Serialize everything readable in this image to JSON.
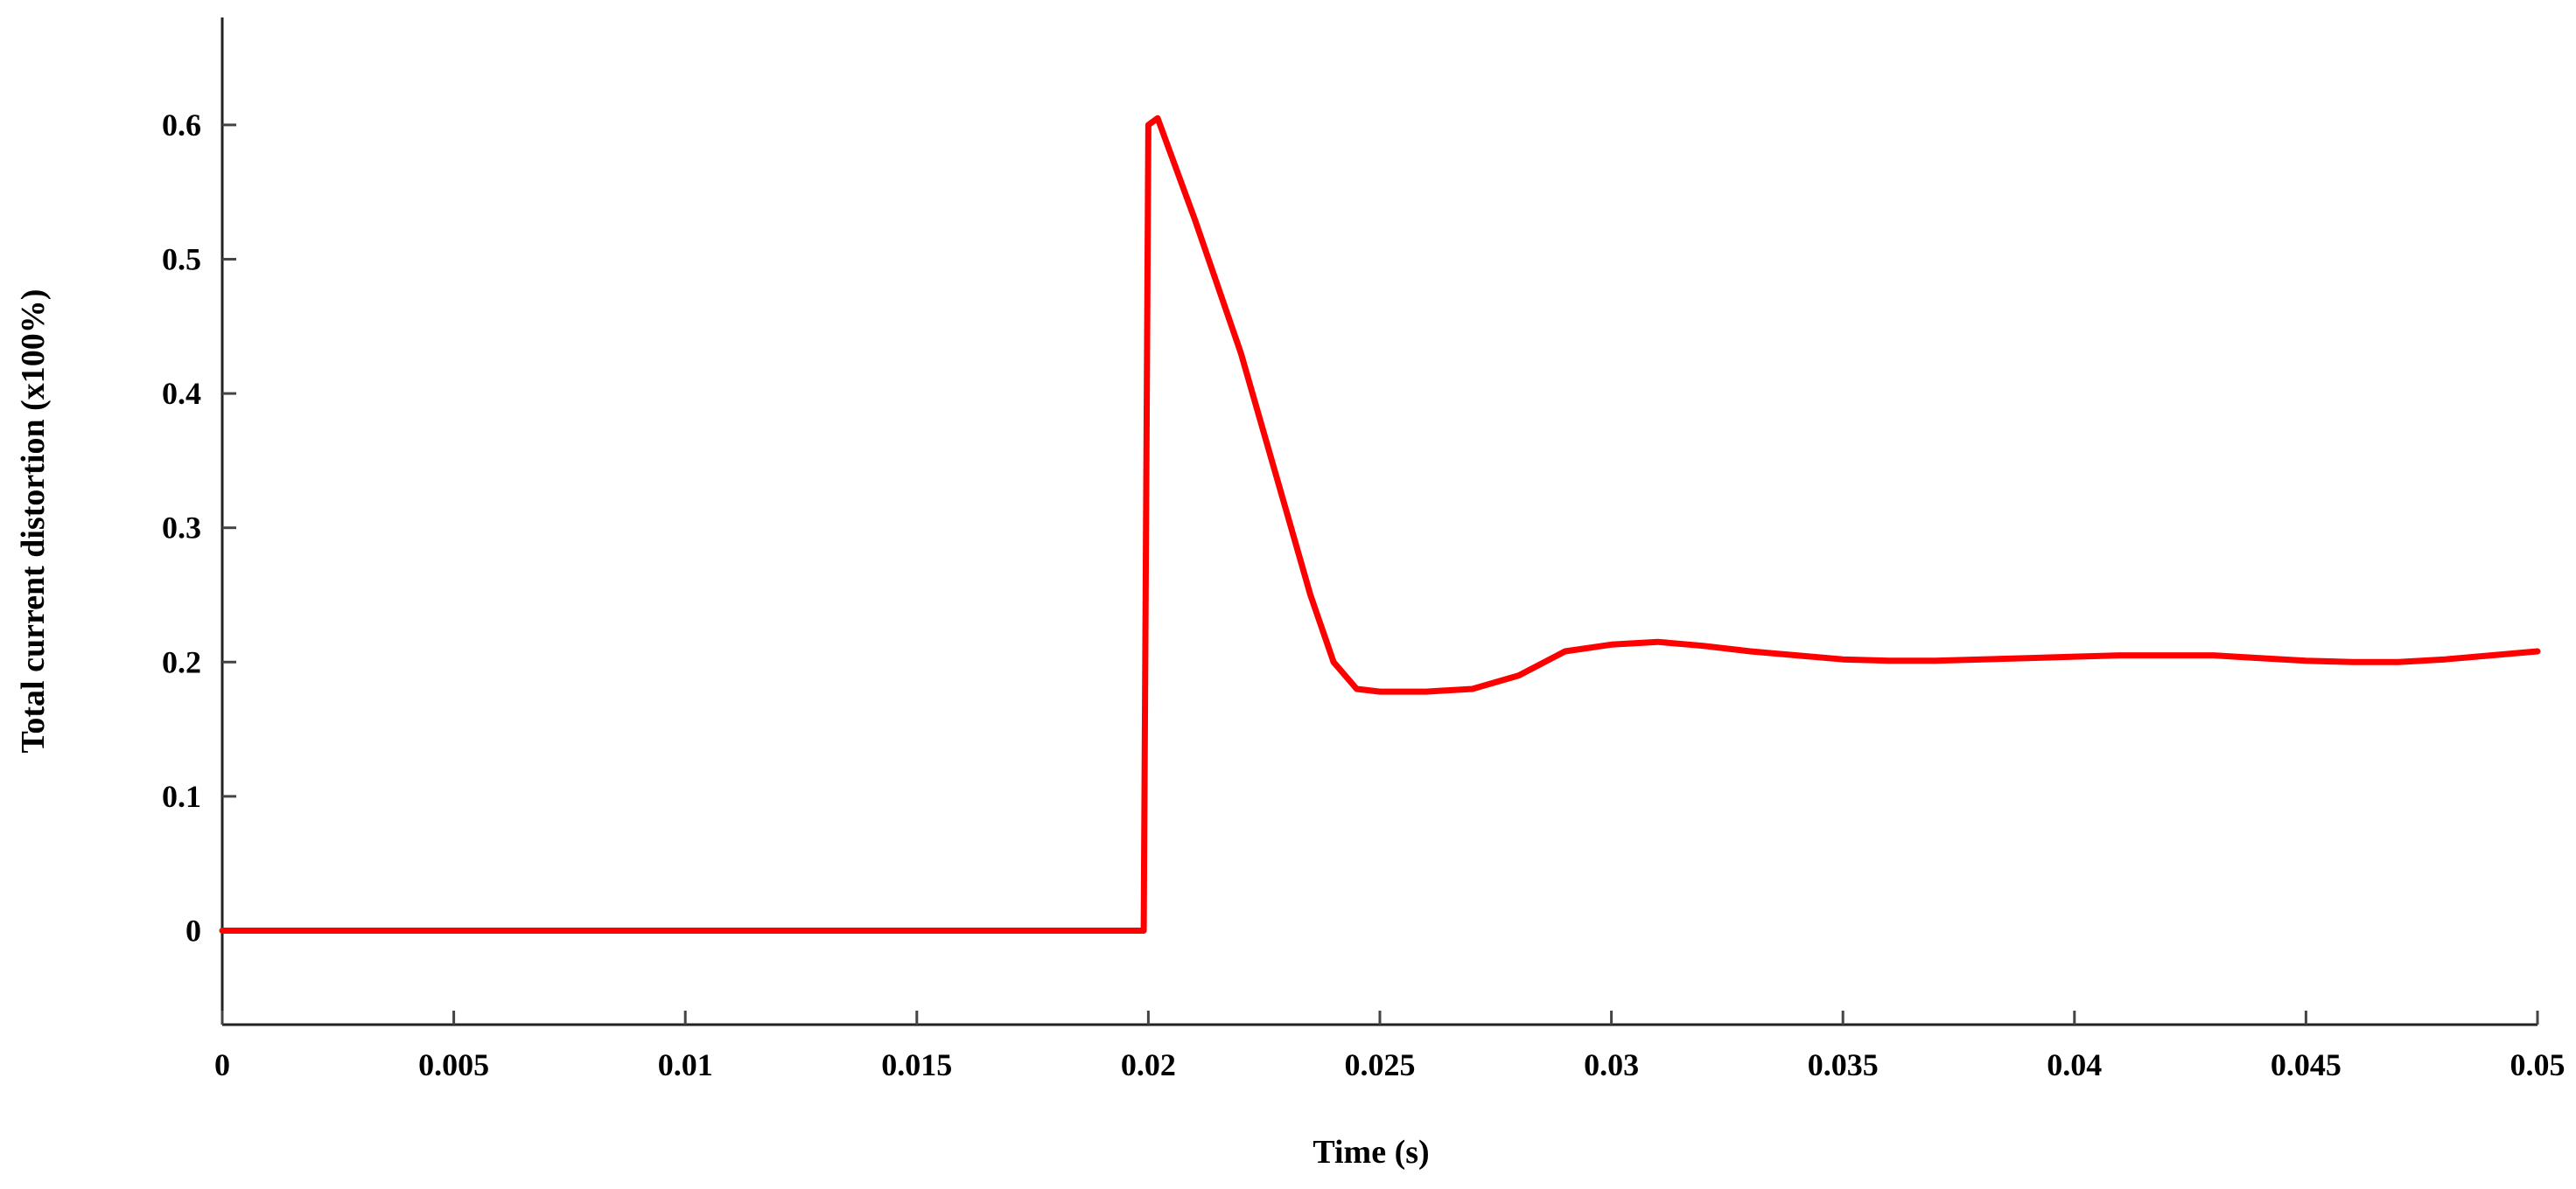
{
  "chart_data": {
    "type": "line",
    "title": "",
    "xlabel": "Time (s)",
    "ylabel": "Total current distortion  (x100%)",
    "xlim": [
      0,
      0.05
    ],
    "ylim": [
      -0.07,
      0.68
    ],
    "x_ticks": [
      0,
      0.005,
      0.01,
      0.015,
      0.02,
      0.025,
      0.03,
      0.035,
      0.04,
      0.045,
      0.05
    ],
    "x_tick_labels": [
      "0",
      "0.005",
      "0.01",
      "0.015",
      "0.02",
      "0.025",
      "0.03",
      "0.035",
      "0.04",
      "0.045",
      "0.05"
    ],
    "y_ticks": [
      0,
      0.1,
      0.2,
      0.3,
      0.4,
      0.5,
      0.6
    ],
    "y_tick_labels": [
      "0",
      "0.1",
      "0.2",
      "0.3",
      "0.4",
      "0.5",
      "0.6"
    ],
    "grid": false,
    "legend": "none",
    "series": [
      {
        "color": "#ff0000",
        "x": [
          0,
          0.005,
          0.01,
          0.015,
          0.0199,
          0.02,
          0.0202,
          0.021,
          0.022,
          0.023,
          0.0235,
          0.024,
          0.0245,
          0.025,
          0.026,
          0.027,
          0.028,
          0.029,
          0.03,
          0.031,
          0.032,
          0.033,
          0.034,
          0.035,
          0.036,
          0.037,
          0.038,
          0.039,
          0.04,
          0.041,
          0.042,
          0.043,
          0.044,
          0.045,
          0.046,
          0.047,
          0.048,
          0.049,
          0.05
        ],
        "y": [
          0,
          0,
          0,
          0,
          0,
          0.6,
          0.605,
          0.53,
          0.43,
          0.31,
          0.25,
          0.2,
          0.18,
          0.178,
          0.178,
          0.18,
          0.19,
          0.208,
          0.213,
          0.215,
          0.212,
          0.208,
          0.205,
          0.202,
          0.201,
          0.201,
          0.202,
          0.203,
          0.204,
          0.205,
          0.205,
          0.205,
          0.203,
          0.201,
          0.2,
          0.2,
          0.202,
          0.205,
          0.208
        ]
      }
    ]
  }
}
